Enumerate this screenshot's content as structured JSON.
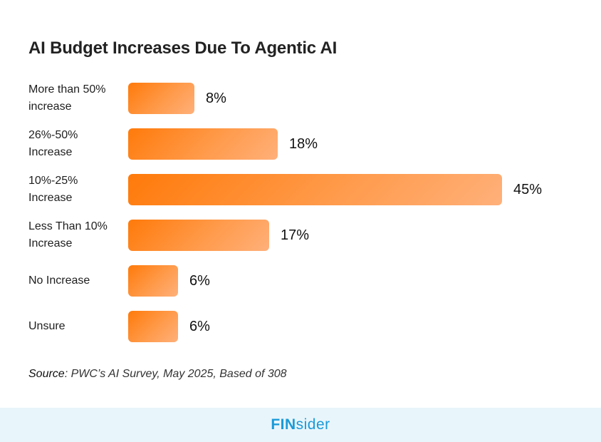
{
  "chart_data": {
    "type": "bar",
    "orientation": "horizontal",
    "title": "AI Budget Increases Due To Agentic AI",
    "categories": [
      [
        "More than 50%",
        "increase"
      ],
      [
        "26%-50%",
        "Increase"
      ],
      [
        "10%-25%",
        "Increase"
      ],
      [
        "Less Than 10%",
        "Increase"
      ],
      [
        "No Increase"
      ],
      [
        "Unsure"
      ]
    ],
    "values": [
      8,
      18,
      45,
      17,
      6,
      6
    ],
    "value_labels": [
      "8%",
      "18%",
      "45%",
      "17%",
      "6%",
      "6%"
    ],
    "unit": "%",
    "grid": false
  },
  "colors": {
    "bar_start": "#ff7a0a",
    "bar_end": "#ffb07a",
    "brand": "#1a9ad8",
    "footer_bg": "#e8f5fb"
  },
  "source": {
    "prefix": "Source",
    "text": ": PWC’s AI Survey, May 2025, Based of 308"
  },
  "footer": {
    "brand_strong": "FIN",
    "brand_light": "sider"
  }
}
